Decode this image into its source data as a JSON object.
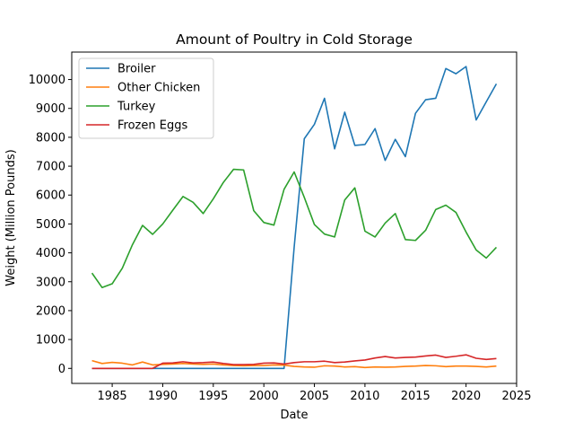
{
  "chart_data": {
    "type": "line",
    "title": "Amount of Poultry in Cold Storage",
    "xlabel": "Date",
    "ylabel": "Weight (Million Pounds)",
    "xlim": [
      1981.0,
      2025.0
    ],
    "ylim": [
      -520,
      10950
    ],
    "xticks": [
      1985,
      1990,
      1995,
      2000,
      2005,
      2010,
      2015,
      2020,
      2025
    ],
    "yticks": [
      0,
      1000,
      2000,
      3000,
      4000,
      5000,
      6000,
      7000,
      8000,
      9000,
      10000
    ],
    "legend_position": "top-left",
    "x": [
      1983,
      1984,
      1985,
      1986,
      1987,
      1988,
      1989,
      1990,
      1991,
      1992,
      1993,
      1994,
      1995,
      1996,
      1997,
      1998,
      1999,
      2000,
      2001,
      2002,
      2003,
      2004,
      2005,
      2006,
      2007,
      2008,
      2009,
      2010,
      2011,
      2012,
      2013,
      2014,
      2015,
      2016,
      2017,
      2018,
      2019,
      2020,
      2021,
      2022,
      2023
    ],
    "series": [
      {
        "name": "Broiler",
        "color": "#1f77b4",
        "values": [
          0,
          0,
          0,
          0,
          0,
          0,
          0,
          0,
          0,
          0,
          0,
          0,
          0,
          0,
          0,
          0,
          0,
          0,
          0,
          0,
          4200,
          7950,
          8450,
          9350,
          7600,
          8870,
          7720,
          7750,
          8300,
          7200,
          7930,
          7330,
          8830,
          9300,
          9350,
          10380,
          10200,
          10450,
          8600,
          9230,
          9850
        ]
      },
      {
        "name": "Other Chicken",
        "color": "#ff7f0e",
        "values": [
          270,
          170,
          210,
          180,
          120,
          220,
          120,
          140,
          150,
          170,
          150,
          140,
          150,
          120,
          100,
          90,
          100,
          100,
          120,
          110,
          70,
          50,
          40,
          90,
          80,
          50,
          60,
          30,
          50,
          40,
          50,
          70,
          80,
          100,
          90,
          60,
          80,
          80,
          70,
          50,
          80
        ]
      },
      {
        "name": "Turkey",
        "color": "#2ca02c",
        "values": [
          3300,
          2800,
          2930,
          3470,
          4280,
          4950,
          4640,
          5000,
          5480,
          5950,
          5750,
          5360,
          5870,
          6440,
          6890,
          6870,
          5460,
          5050,
          4960,
          6200,
          6800,
          5920,
          4980,
          4650,
          4550,
          5830,
          6250,
          4750,
          4550,
          5030,
          5360,
          4460,
          4430,
          4780,
          5500,
          5650,
          5400,
          4720,
          4100,
          3820,
          4190
        ]
      },
      {
        "name": "Frozen Eggs",
        "color": "#d62728",
        "values": [
          0,
          0,
          0,
          0,
          0,
          0,
          0,
          180,
          190,
          230,
          190,
          200,
          220,
          170,
          130,
          130,
          140,
          180,
          190,
          150,
          200,
          230,
          230,
          250,
          200,
          220,
          260,
          290,
          360,
          410,
          360,
          380,
          390,
          430,
          460,
          380,
          420,
          470,
          350,
          310,
          340
        ]
      }
    ]
  }
}
